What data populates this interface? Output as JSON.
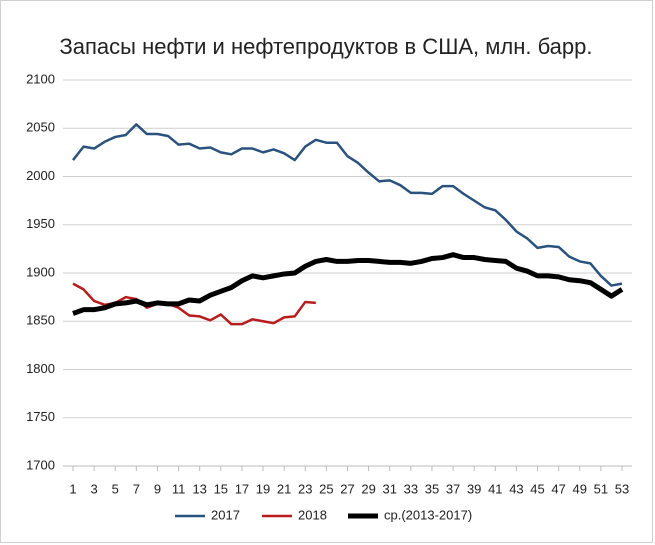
{
  "chart_data": {
    "type": "line",
    "title": "Запасы нефти и нефтепродуктов в США, млн. барр.",
    "x": [
      1,
      2,
      3,
      4,
      5,
      6,
      7,
      8,
      9,
      10,
      11,
      12,
      13,
      14,
      15,
      16,
      17,
      18,
      19,
      20,
      21,
      22,
      23,
      24,
      25,
      26,
      27,
      28,
      29,
      30,
      31,
      32,
      33,
      34,
      35,
      36,
      37,
      38,
      39,
      40,
      41,
      42,
      43,
      44,
      45,
      46,
      47,
      48,
      49,
      50,
      51,
      52,
      53
    ],
    "xlim": [
      1,
      53
    ],
    "xticks": [
      1,
      3,
      5,
      7,
      9,
      11,
      13,
      15,
      17,
      19,
      21,
      23,
      25,
      27,
      29,
      31,
      33,
      35,
      37,
      39,
      41,
      43,
      45,
      47,
      49,
      51,
      53
    ],
    "ylim": [
      1700,
      2100
    ],
    "yticks": [
      1700,
      1750,
      1800,
      1850,
      1900,
      1950,
      2000,
      2050,
      2100
    ],
    "grid": true,
    "legend": "bottom",
    "series": [
      {
        "name": "2017",
        "color": "#2a527e",
        "line_width": 2.5,
        "values": [
          2017,
          2031,
          2029,
          2036,
          2041,
          2043,
          2054,
          2044,
          2044,
          2042,
          2033,
          2034,
          2029,
          2030,
          2025,
          2023,
          2029,
          2029,
          2025,
          2028,
          2024,
          2017,
          2031,
          2038,
          2035,
          2035,
          2021,
          2014,
          2004,
          1995,
          1996,
          1991,
          1983,
          1983,
          1982,
          1990,
          1990,
          1982,
          1975,
          1968,
          1965,
          1955,
          1943,
          1936,
          1926,
          1928,
          1927,
          1917,
          1912,
          1910,
          1897,
          1887,
          1889
        ]
      },
      {
        "name": "2018",
        "color": "#b81c1c",
        "line_width": 2.5,
        "values": [
          1889,
          1883,
          1871,
          1867,
          1869,
          1875,
          1873,
          1864,
          1868,
          1868,
          1864,
          1856,
          1855,
          1851,
          1857,
          1847,
          1847,
          1852,
          1850,
          1848,
          1854,
          1855,
          1870,
          1869,
          null,
          null,
          null,
          null,
          null,
          null,
          null,
          null,
          null,
          null,
          null,
          null,
          null,
          null,
          null,
          null,
          null,
          null,
          null,
          null,
          null,
          null,
          null,
          null,
          null,
          null,
          null,
          null,
          null
        ]
      },
      {
        "name": "ср.(2013-2017)",
        "color": "#000000",
        "line_width": 5,
        "values": [
          1858,
          1862,
          1862,
          1864,
          1868,
          1869,
          1871,
          1867,
          1869,
          1868,
          1868,
          1872,
          1871,
          1877,
          1881,
          1885,
          1892,
          1897,
          1895,
          1897,
          1899,
          1900,
          1907,
          1912,
          1914,
          1912,
          1912,
          1913,
          1913,
          1912,
          1911,
          1911,
          1910,
          1912,
          1915,
          1916,
          1919,
          1916,
          1916,
          1914,
          1913,
          1912,
          1905,
          1902,
          1897,
          1897,
          1896,
          1893,
          1892,
          1890,
          1883,
          1876,
          1883
        ]
      }
    ]
  }
}
